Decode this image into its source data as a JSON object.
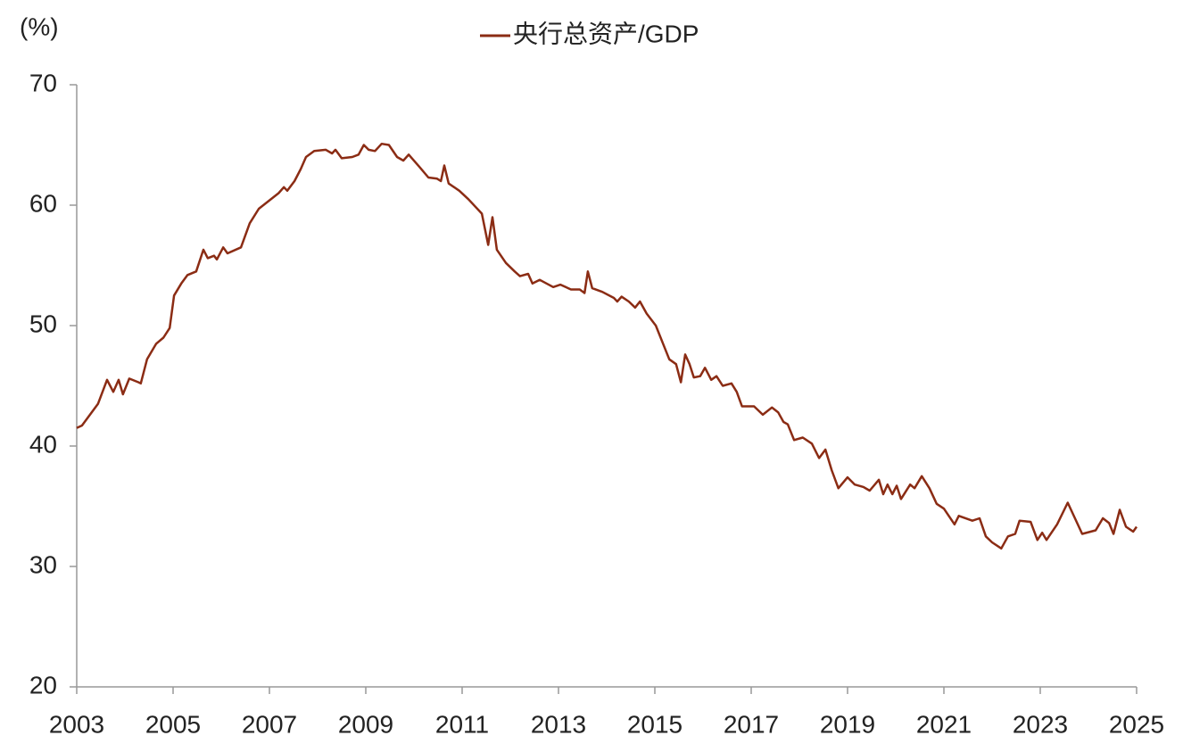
{
  "chart_data": {
    "type": "line",
    "y_label": "(%)",
    "series": [
      {
        "name": "央行总资产/GDP",
        "color": "#8b2c14",
        "values": [
          41.5,
          41.7,
          43.5,
          45.5,
          44.5,
          45.5,
          44.3,
          45.6,
          45.3,
          45.2,
          47.2,
          48.5,
          49.0,
          49.8,
          52.5,
          53.5,
          54.2,
          54.5,
          56.3,
          55.6,
          55.8,
          55.5,
          56.5,
          56.0,
          56.5,
          58.5,
          59.7,
          60.4,
          61.0,
          61.5,
          61.2,
          62.0,
          63.0,
          64.0,
          64.5,
          64.6,
          64.3,
          64.6,
          63.9,
          64.0,
          64.2,
          65.0,
          64.6,
          64.5,
          65.1,
          65.0,
          64.0,
          63.7,
          64.2,
          63.2,
          62.3,
          62.2,
          62.0,
          63.3,
          61.8,
          61.2,
          60.5,
          59.3,
          56.7,
          59.0,
          56.3,
          55.2,
          54.5,
          54.1,
          54.3,
          53.5,
          53.8,
          53.2,
          53.4,
          53.0,
          53.0,
          52.7,
          54.5,
          53.1,
          52.8,
          52.3,
          52.0,
          52.4,
          52.0,
          51.5,
          52.0,
          51.0,
          50.0,
          48.5,
          47.2,
          46.8,
          45.3,
          47.6,
          46.8,
          45.7,
          45.8,
          46.5,
          45.5,
          45.8,
          45.0,
          45.2,
          44.5,
          43.3,
          43.3,
          42.6,
          43.2,
          42.8,
          42.0,
          41.8,
          40.5,
          40.7,
          40.2,
          39.0,
          39.7,
          38.0,
          36.5,
          37.4,
          36.8,
          36.6,
          36.3,
          37.2,
          36.0,
          36.8,
          36.0,
          36.7,
          35.6,
          36.8,
          36.5,
          37.5,
          36.5,
          35.2,
          34.8,
          33.5,
          34.2,
          33.8,
          34.0,
          32.5,
          32.0,
          31.5,
          32.5,
          32.7,
          33.8,
          33.7,
          32.2,
          32.8,
          32.2,
          33.5,
          35.3,
          34.0,
          32.7,
          33.0,
          34.0,
          33.6,
          32.7,
          34.7,
          33.3,
          32.9,
          33.3
        ]
      }
    ],
    "x": [
      2003.0,
      2003.11,
      2003.44,
      2003.63,
      2003.76,
      2003.87,
      2003.96,
      2004.09,
      2004.28,
      2004.33,
      2004.46,
      2004.65,
      2004.8,
      2004.93,
      2005.02,
      2005.17,
      2005.3,
      2005.48,
      2005.63,
      2005.72,
      2005.85,
      2005.91,
      2006.04,
      2006.13,
      2006.41,
      2006.59,
      2006.78,
      2007.0,
      2007.19,
      2007.3,
      2007.37,
      2007.52,
      2007.65,
      2007.76,
      2007.93,
      2008.17,
      2008.3,
      2008.37,
      2008.5,
      2008.72,
      2008.85,
      2008.96,
      2009.06,
      2009.19,
      2009.33,
      2009.48,
      2009.65,
      2009.78,
      2009.89,
      2010.11,
      2010.3,
      2010.48,
      2010.56,
      2010.63,
      2010.72,
      2010.94,
      2011.13,
      2011.41,
      2011.54,
      2011.63,
      2011.72,
      2011.91,
      2012.09,
      2012.2,
      2012.37,
      2012.46,
      2012.61,
      2012.89,
      2013.04,
      2013.26,
      2013.44,
      2013.54,
      2013.61,
      2013.7,
      2013.91,
      2014.15,
      2014.22,
      2014.31,
      2014.46,
      2014.59,
      2014.69,
      2014.83,
      2015.02,
      2015.17,
      2015.3,
      2015.44,
      2015.54,
      2015.63,
      2015.72,
      2015.81,
      2015.94,
      2016.04,
      2016.17,
      2016.28,
      2016.41,
      2016.59,
      2016.7,
      2016.81,
      2017.06,
      2017.24,
      2017.43,
      2017.56,
      2017.67,
      2017.76,
      2017.89,
      2018.07,
      2018.26,
      2018.41,
      2018.54,
      2018.67,
      2018.81,
      2019.0,
      2019.15,
      2019.33,
      2019.46,
      2019.65,
      2019.74,
      2019.83,
      2019.93,
      2020.02,
      2020.11,
      2020.3,
      2020.39,
      2020.54,
      2020.7,
      2020.85,
      2021.0,
      2021.22,
      2021.31,
      2021.59,
      2021.74,
      2021.87,
      2022.0,
      2022.19,
      2022.33,
      2022.48,
      2022.57,
      2022.8,
      2022.94,
      2023.04,
      2023.13,
      2023.35,
      2023.57,
      2023.72,
      2023.87,
      2024.15,
      2024.3,
      2024.43,
      2024.52,
      2024.65,
      2024.78,
      2024.93,
      2025.0
    ],
    "xlim": [
      2003,
      2025
    ],
    "xticks": [
      2003,
      2005,
      2007,
      2009,
      2011,
      2013,
      2015,
      2017,
      2019,
      2021,
      2023,
      2025
    ],
    "ylim": [
      20,
      70
    ],
    "yticks": [
      20,
      30,
      40,
      50,
      60,
      70
    ],
    "grid": false
  }
}
